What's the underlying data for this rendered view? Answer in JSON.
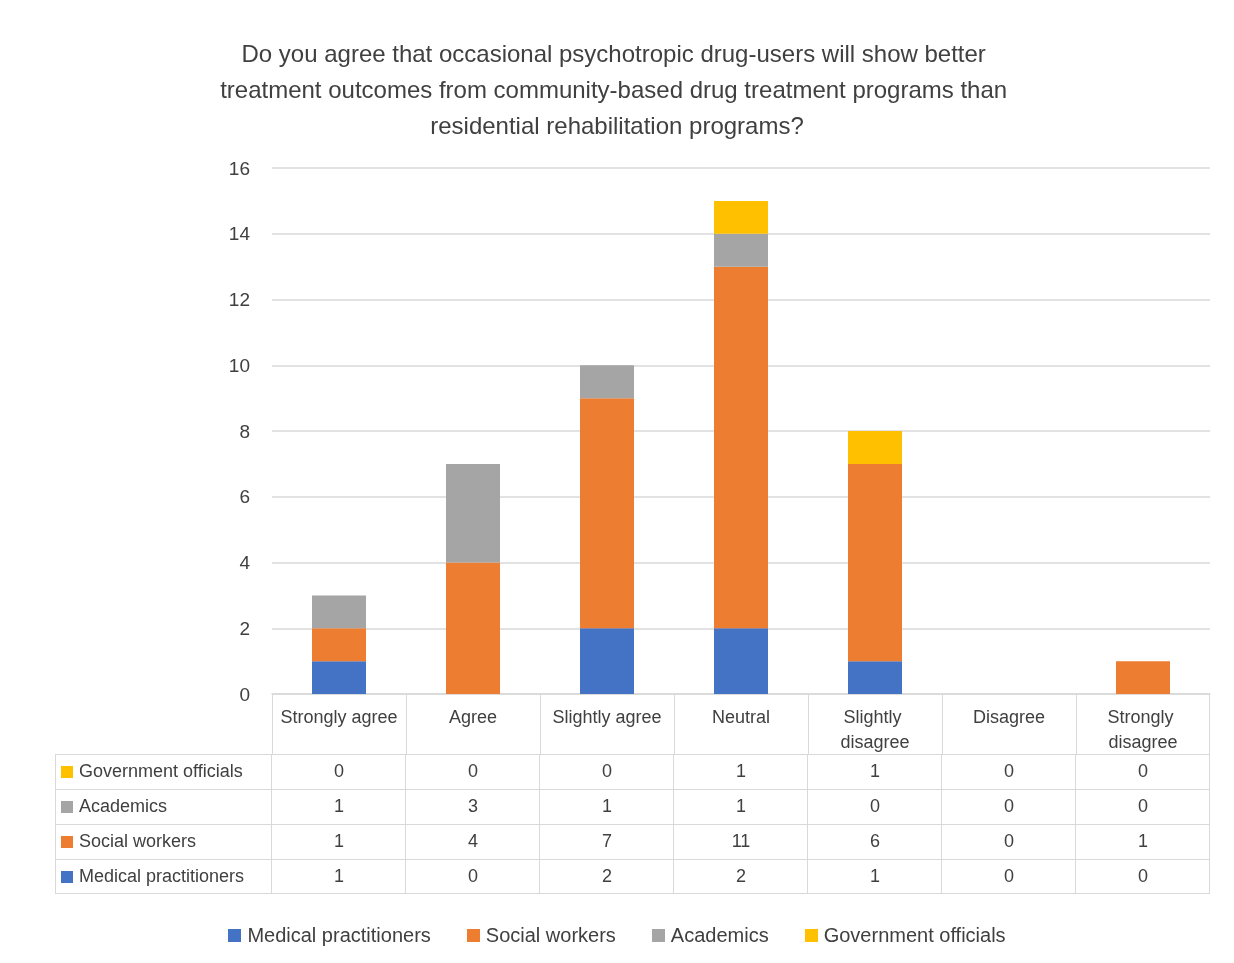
{
  "chart_data": {
    "type": "bar",
    "stacked": true,
    "title": "Do you agree that occasional psychotropic drug-users will show better treatment outcomes from community-based drug treatment programs than residential rehabilitation programs?",
    "categories": [
      "Strongly agree",
      "Agree",
      "Slightly agree",
      "Neutral",
      "Slightly disagree",
      "Disagree",
      "Strongly disagree"
    ],
    "series": [
      {
        "name": "Medical practitioners",
        "color": "#4472c4",
        "values": [
          1,
          0,
          2,
          2,
          1,
          0,
          0
        ]
      },
      {
        "name": "Social workers",
        "color": "#ed7d31",
        "values": [
          1,
          4,
          7,
          11,
          6,
          0,
          1
        ]
      },
      {
        "name": "Academics",
        "color": "#a5a5a5",
        "values": [
          1,
          3,
          1,
          1,
          0,
          0,
          0
        ]
      },
      {
        "name": "Government officials",
        "color": "#ffc000",
        "values": [
          0,
          0,
          0,
          1,
          1,
          0,
          0
        ]
      }
    ],
    "ylim": [
      0,
      16
    ],
    "yticks": [
      0,
      2,
      4,
      6,
      8,
      10,
      12,
      14,
      16
    ],
    "grid": "y",
    "legend": "bottom",
    "data_labels": true
  }
}
